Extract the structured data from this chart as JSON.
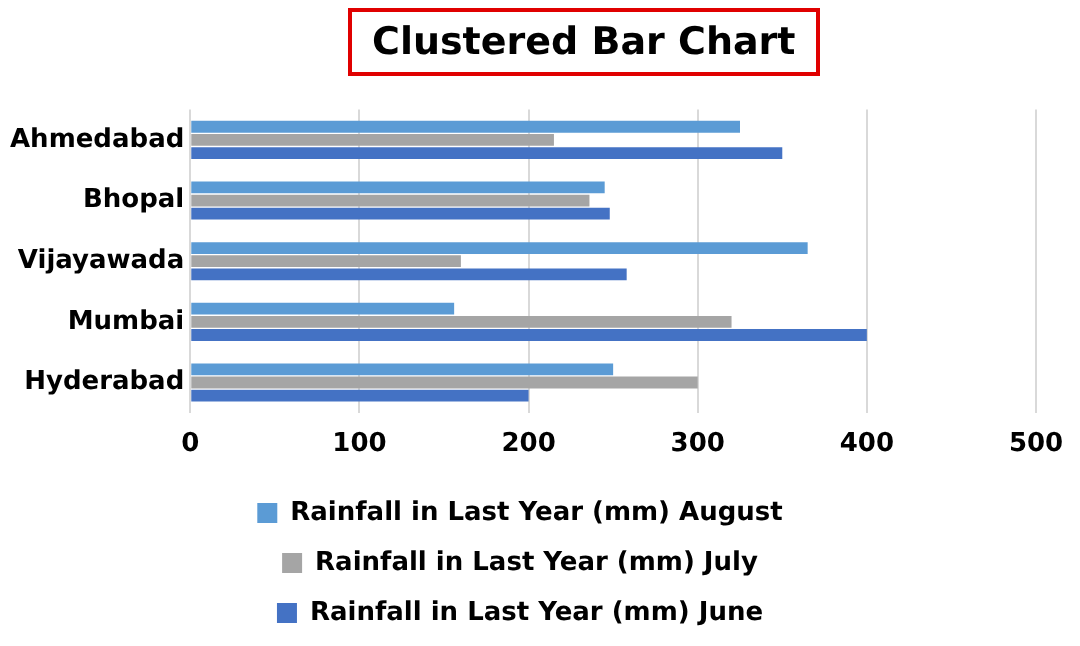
{
  "chart_data": {
    "type": "bar",
    "orientation": "horizontal",
    "title": "Clustered Bar Chart",
    "categories": [
      "Ahmedabad",
      "Bhopal",
      "Vijayawada",
      "Mumbai",
      "Hyderabad"
    ],
    "series": [
      {
        "name": "Rainfall in Last Year (mm) August",
        "color": "#5b9bd5",
        "values": [
          325,
          245,
          365,
          156,
          250
        ]
      },
      {
        "name": "Rainfall in Last Year (mm) July",
        "color": "#a5a5a5",
        "values": [
          215,
          236,
          160,
          320,
          300
        ]
      },
      {
        "name": "Rainfall in Last Year (mm) June",
        "color": "#4472c4",
        "values": [
          350,
          248,
          258,
          400,
          200
        ]
      }
    ],
    "xlim": [
      0,
      500
    ],
    "xticks": [
      0,
      100,
      200,
      300,
      400,
      500
    ],
    "grid": "x",
    "legend": "bottom"
  }
}
